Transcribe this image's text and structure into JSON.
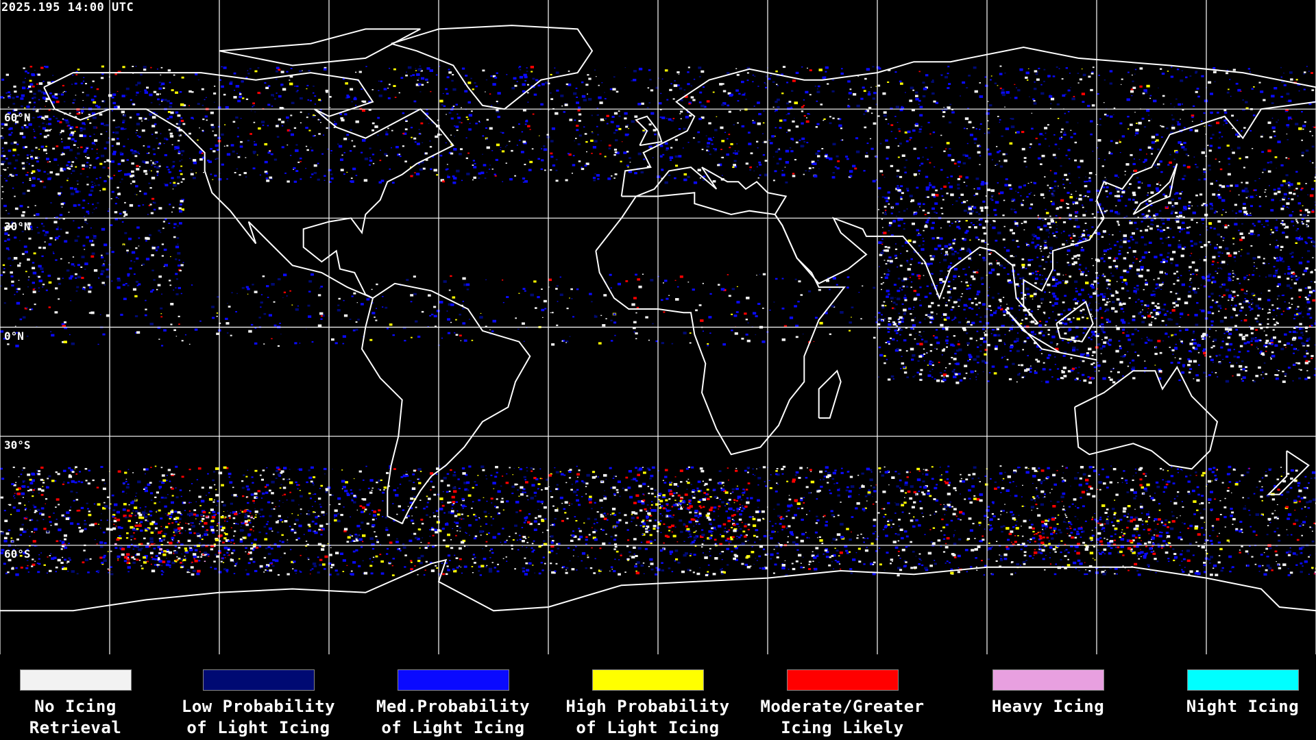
{
  "timestamp": "2025.195 14:00 UTC",
  "latitude_labels": [
    {
      "text": "60°N",
      "lat": 60
    },
    {
      "text": "30°N",
      "lat": 30
    },
    {
      "text": "0°N",
      "lat": 0
    },
    {
      "text": "30°S",
      "lat": -30
    },
    {
      "text": "60°S",
      "lat": -60
    }
  ],
  "legend": [
    {
      "line1": "No Icing",
      "line2": "Retrieval",
      "color": "#f2f2f2"
    },
    {
      "line1": "Low Probability",
      "line2": "of Light Icing",
      "color": "#000a73"
    },
    {
      "line1": "Med.Probability",
      "line2": "of Light Icing",
      "color": "#0a0aff"
    },
    {
      "line1": "High Probability",
      "line2": "of Light Icing",
      "color": "#ffff00"
    },
    {
      "line1": "Moderate/Greater",
      "line2": "Icing Likely",
      "color": "#ff0000"
    },
    {
      "line1": "Heavy Icing",
      "line2": "",
      "color": "#e8a0e0"
    },
    {
      "line1": "Night Icing",
      "line2": "",
      "color": "#00ffff"
    }
  ],
  "colors": {
    "background": "#000000",
    "grid": "#ffffff",
    "coastline": "#ffffff"
  }
}
